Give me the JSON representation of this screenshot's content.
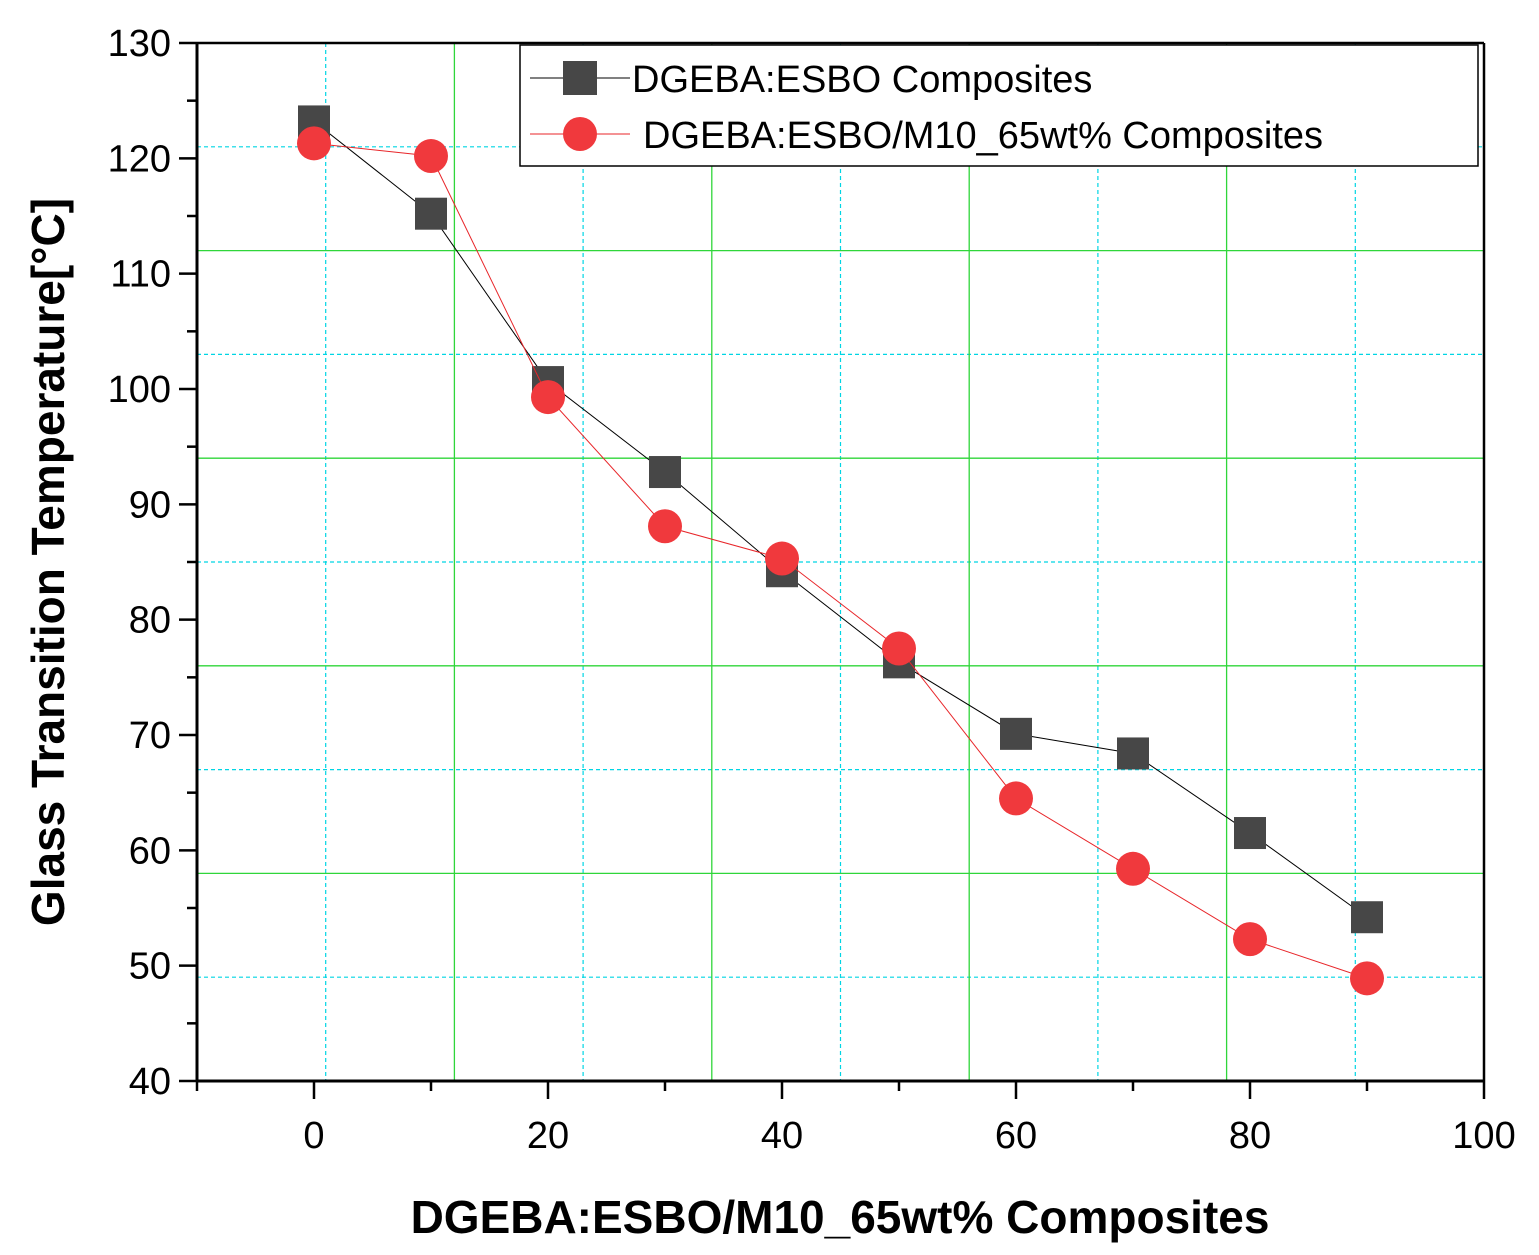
{
  "chart_data": {
    "type": "line",
    "title": "",
    "xlabel": "DGEBA:ESBO/M10_65wt% Composites",
    "ylabel": "Glass Transition Temperature[°C]",
    "xlim": [
      -10,
      100
    ],
    "ylim": [
      40,
      130
    ],
    "xticks": [
      0,
      20,
      40,
      60,
      80,
      100
    ],
    "yticks": [
      40,
      50,
      60,
      70,
      80,
      90,
      100,
      110,
      120,
      130
    ],
    "grid": true,
    "legend_position": "top-right",
    "series": [
      {
        "name": "DGEBA:ESBO Composites",
        "marker": "square",
        "color": "#474747",
        "line_color": "#000000",
        "x": [
          0,
          10,
          20,
          30,
          40,
          50,
          60,
          70,
          80,
          90
        ],
        "y": [
          123.2,
          115.2,
          100.6,
          92.8,
          84.2,
          76.3,
          70.1,
          68.4,
          61.5,
          54.2
        ]
      },
      {
        "name": "DGEBA:ESBO/M10_65wt% Composites",
        "marker": "circle",
        "color": "#f0393d",
        "line_color": "#e8262a",
        "x": [
          0,
          10,
          20,
          30,
          40,
          50,
          60,
          70,
          80,
          90
        ],
        "y": [
          121.3,
          120.2,
          99.3,
          88.1,
          85.3,
          77.5,
          64.5,
          58.4,
          52.3,
          48.9
        ]
      }
    ]
  }
}
